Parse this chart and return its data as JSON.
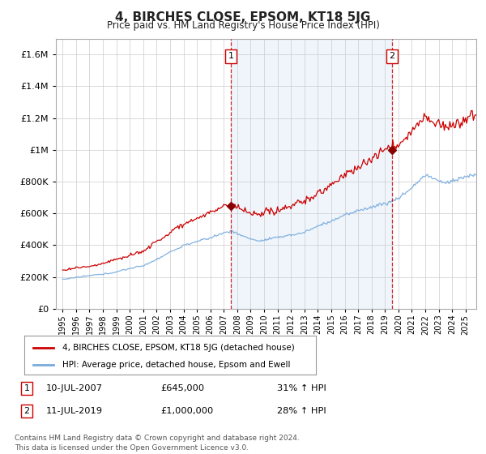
{
  "title": "4, BIRCHES CLOSE, EPSOM, KT18 5JG",
  "subtitle": "Price paid vs. HM Land Registry's House Price Index (HPI)",
  "footer": "Contains HM Land Registry data © Crown copyright and database right 2024.\nThis data is licensed under the Open Government Licence v3.0.",
  "legend_property": "4, BIRCHES CLOSE, EPSOM, KT18 5JG (detached house)",
  "legend_hpi": "HPI: Average price, detached house, Epsom and Ewell",
  "sale1_label": "1",
  "sale1_date": "10-JUL-2007",
  "sale1_price": "£645,000",
  "sale1_hpi": "31% ↑ HPI",
  "sale1_year": 2007.53,
  "sale1_value": 645000,
  "sale2_label": "2",
  "sale2_date": "11-JUL-2019",
  "sale2_price": "£1,000,000",
  "sale2_hpi": "28% ↑ HPI",
  "sale2_year": 2019.53,
  "sale2_value": 1000000,
  "dashed_line_color": "#cc0000",
  "property_line_color": "#cc0000",
  "hpi_line_color": "#77aadd",
  "fill_color": "#ddeeff",
  "background_color": "#ffffff",
  "grid_color": "#cccccc",
  "ylim_max": 1700000,
  "ytick_interval": 200000,
  "xlim_start": 1994.5,
  "xlim_end": 2025.8
}
